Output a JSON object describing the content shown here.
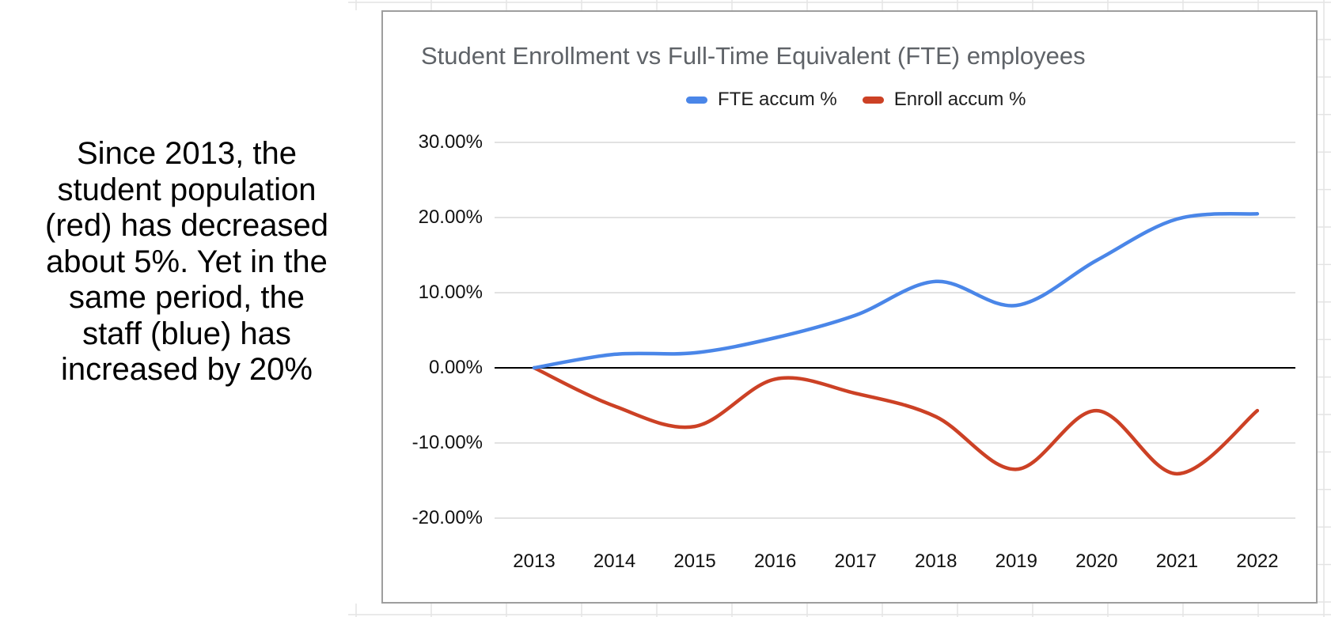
{
  "annotation": {
    "lines": [
      "Since 2013, the",
      "student population",
      "(red) has decreased",
      "about 5%. Yet in the",
      "same period, the",
      "staff (blue) has",
      "increased by 20%"
    ]
  },
  "chart_data": {
    "type": "line",
    "title": "Student Enrollment vs Full-Time Equivalent (FTE) employees",
    "categories": [
      "2013",
      "2014",
      "2015",
      "2016",
      "2017",
      "2018",
      "2019",
      "2020",
      "2021",
      "2022"
    ],
    "series": [
      {
        "name": "FTE accum %",
        "color": "#4a86e8",
        "values": [
          0,
          1.8,
          2.0,
          4.0,
          7.0,
          11.5,
          8.3,
          14.3,
          19.8,
          20.5
        ]
      },
      {
        "name": "Enroll accum %",
        "color": "#cc4125",
        "values": [
          0,
          -5.1,
          -7.8,
          -1.5,
          -3.4,
          -6.5,
          -13.5,
          -5.7,
          -14.1,
          -5.7
        ]
      }
    ],
    "y_axis": {
      "tick_labels": [
        "30.00%",
        "20.00%",
        "10.00%",
        "0.00%",
        "-10.00%",
        "-20.00%"
      ],
      "tick_values": [
        30,
        20,
        10,
        0,
        -10,
        -20
      ],
      "unit": "percent"
    },
    "smooth": true,
    "grid": true,
    "zero_line": true,
    "legend_position": "top"
  },
  "colors": {
    "series_blue": "#4a86e8",
    "series_red": "#cc4125",
    "gridline": "#d9d9d9",
    "zero_line": "#000000",
    "title_text": "#5f6368",
    "card_border": "#9e9e9e",
    "sheet_grid": "#e4e4e4"
  }
}
